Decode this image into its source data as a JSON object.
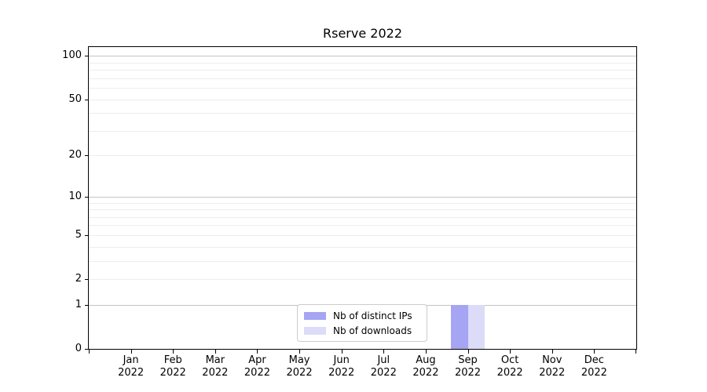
{
  "chart_data": {
    "type": "bar",
    "title": "Rserve 2022",
    "categories": [
      "Jan 2022",
      "Feb 2022",
      "Mar 2022",
      "Apr 2022",
      "May 2022",
      "Jun 2022",
      "Jul 2022",
      "Aug 2022",
      "Sep 2022",
      "Oct 2022",
      "Nov 2022",
      "Dec 2022"
    ],
    "series": [
      {
        "name": "Nb of distinct IPs",
        "color": "#a5a5f3",
        "values": [
          0,
          0,
          0,
          0,
          0,
          0,
          0,
          0,
          1,
          0,
          0,
          0
        ]
      },
      {
        "name": "Nb of downloads",
        "color": "#dcdcf9",
        "values": [
          0,
          0,
          0,
          0,
          0,
          0,
          0,
          0,
          1,
          0,
          0,
          0
        ]
      }
    ],
    "xlabel": "",
    "ylabel": "",
    "yscale": "log1p",
    "ylim": [
      0,
      115
    ],
    "yticks": [
      0,
      1,
      2,
      5,
      10,
      20,
      50,
      100
    ],
    "major_gridlines": [
      1,
      10,
      100
    ],
    "minor_gridlines": [
      2,
      3,
      4,
      5,
      6,
      7,
      8,
      9,
      20,
      30,
      40,
      50,
      60,
      70,
      80,
      90
    ],
    "grid": "horizontal",
    "legend_position": "lower center"
  },
  "colors": {
    "major_grid": "#c4c4c4",
    "minor_grid": "#ededed",
    "spine": "#000000",
    "text": "#000000",
    "legend_border": "#cccccc",
    "legend_bg": "#ffffff"
  }
}
